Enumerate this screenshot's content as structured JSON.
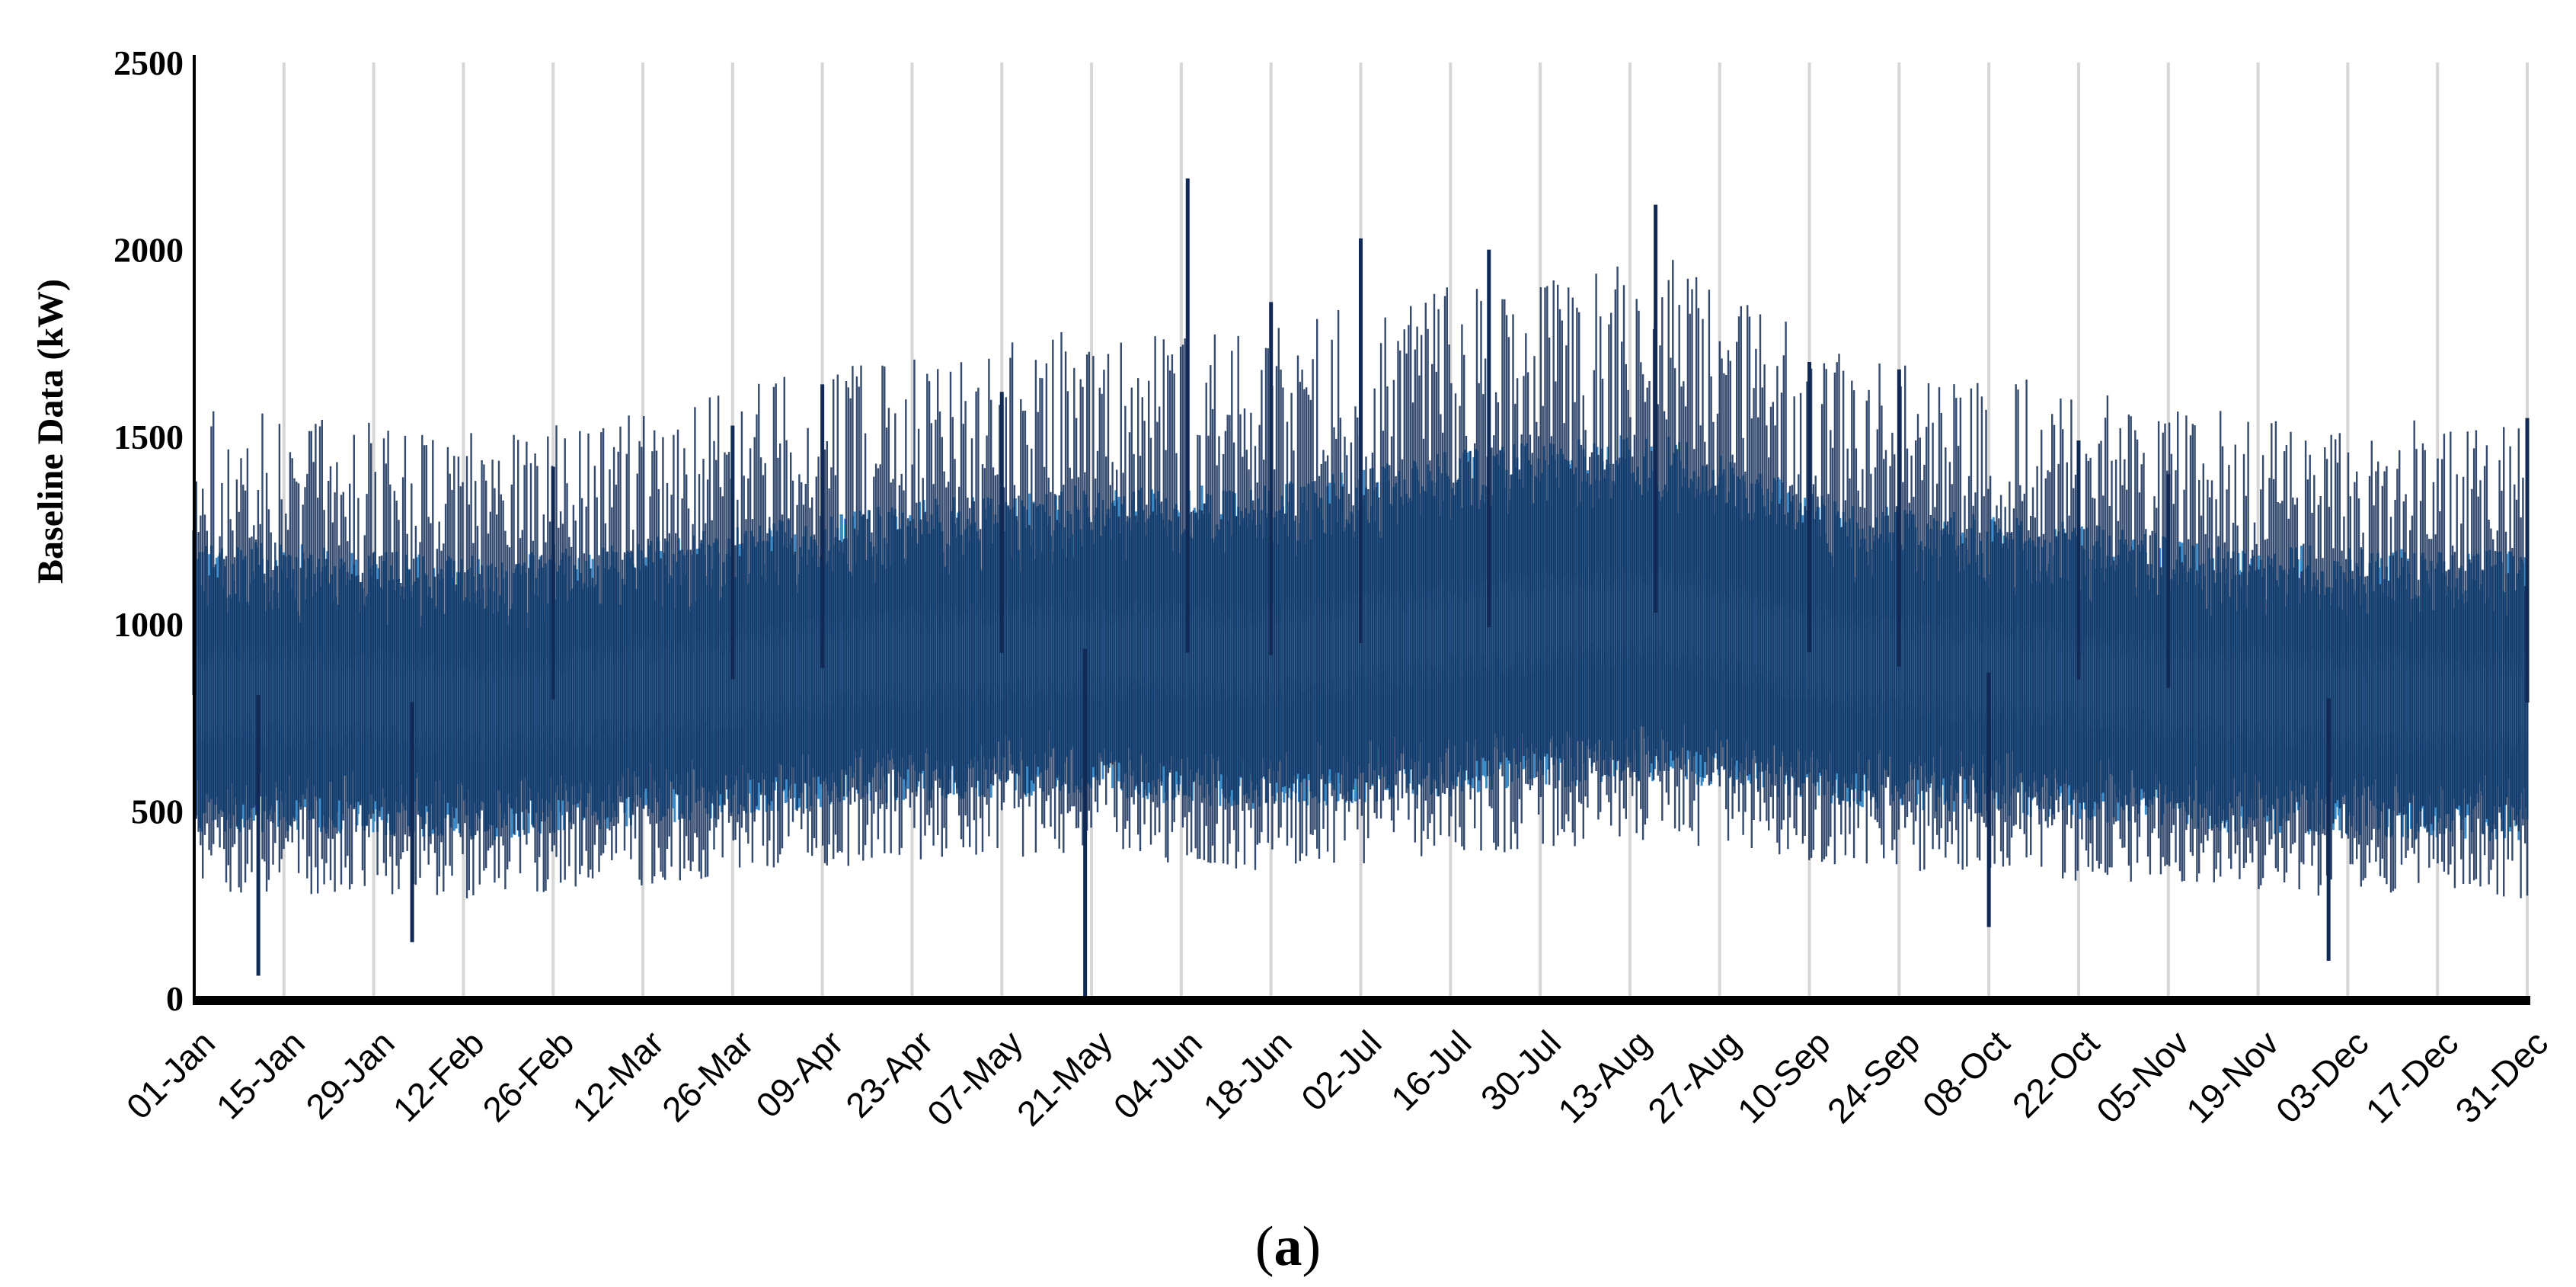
{
  "chart_data": {
    "type": "line",
    "ylabel": "Baseline Data (kW)",
    "xlabel": "",
    "caption_open": "(",
    "caption_letter": "a",
    "caption_close": ")",
    "ylim": [
      0,
      2500
    ],
    "y_ticks": [
      "0",
      "500",
      "1000",
      "1500",
      "2000",
      "2500"
    ],
    "y_tick_values": [
      0,
      500,
      1000,
      1500,
      2000,
      2500
    ],
    "x_tick_labels": [
      "01-Jan",
      "15-Jan",
      "29-Jan",
      "12-Feb",
      "26-Feb",
      "12-Mar",
      "26-Mar",
      "09-Apr",
      "23-Apr",
      "07-May",
      "21-May",
      "04-Jun",
      "18-Jun",
      "02-Jul",
      "16-Jul",
      "30-Jul",
      "13-Aug",
      "27-Aug",
      "10-Sep",
      "24-Sep",
      "08-Oct",
      "22-Oct",
      "05-Nov",
      "19-Nov",
      "03-Dec",
      "17-Dec",
      "31-Dec"
    ],
    "x_tick_days": [
      0,
      14,
      28,
      42,
      56,
      70,
      84,
      98,
      112,
      126,
      140,
      154,
      168,
      182,
      196,
      210,
      224,
      238,
      252,
      266,
      280,
      294,
      308,
      322,
      336,
      350,
      364
    ],
    "grid": "vertical",
    "series_color": "#3b8bc9",
    "spike_color": "#102a55",
    "monthly_mean_kw": [
      780,
      760,
      820,
      900,
      930,
      880,
      950,
      1000,
      880,
      860,
      800,
      780
    ],
    "daily_band_kw": [
      [
        620,
        1000
      ],
      [
        600,
        960
      ],
      [
        650,
        1020
      ],
      [
        700,
        1100
      ],
      [
        720,
        1150
      ],
      [
        680,
        1150
      ],
      [
        720,
        1250
      ],
      [
        760,
        1300
      ],
      [
        690,
        1100
      ],
      [
        660,
        1060
      ],
      [
        620,
        1000
      ],
      [
        600,
        980
      ]
    ],
    "peak_events": [
      {
        "x": "01-Jan",
        "y": 1250
      },
      {
        "x": "11-Jan",
        "y": 60
      },
      {
        "x": "04-Feb",
        "y": 150
      },
      {
        "x": "26-Feb",
        "y": 1420
      },
      {
        "x": "26-Mar",
        "y": 1530
      },
      {
        "x": "09-Apr",
        "y": 1640
      },
      {
        "x": "07-May",
        "y": 1620
      },
      {
        "x": "20-May",
        "y": 0
      },
      {
        "x": "05-Jun",
        "y": 2190
      },
      {
        "x": "18-Jun",
        "y": 1860
      },
      {
        "x": "02-Jul",
        "y": 2030
      },
      {
        "x": "22-Jul",
        "y": 2000
      },
      {
        "x": "17-Aug",
        "y": 2120
      },
      {
        "x": "10-Sep",
        "y": 1700
      },
      {
        "x": "24-Sep",
        "y": 1680
      },
      {
        "x": "08-Oct",
        "y": 190
      },
      {
        "x": "22-Oct",
        "y": 1490
      },
      {
        "x": "05-Nov",
        "y": 1400
      },
      {
        "x": "30-Nov",
        "y": 100
      },
      {
        "x": "31-Dec",
        "y": 1550
      }
    ]
  }
}
